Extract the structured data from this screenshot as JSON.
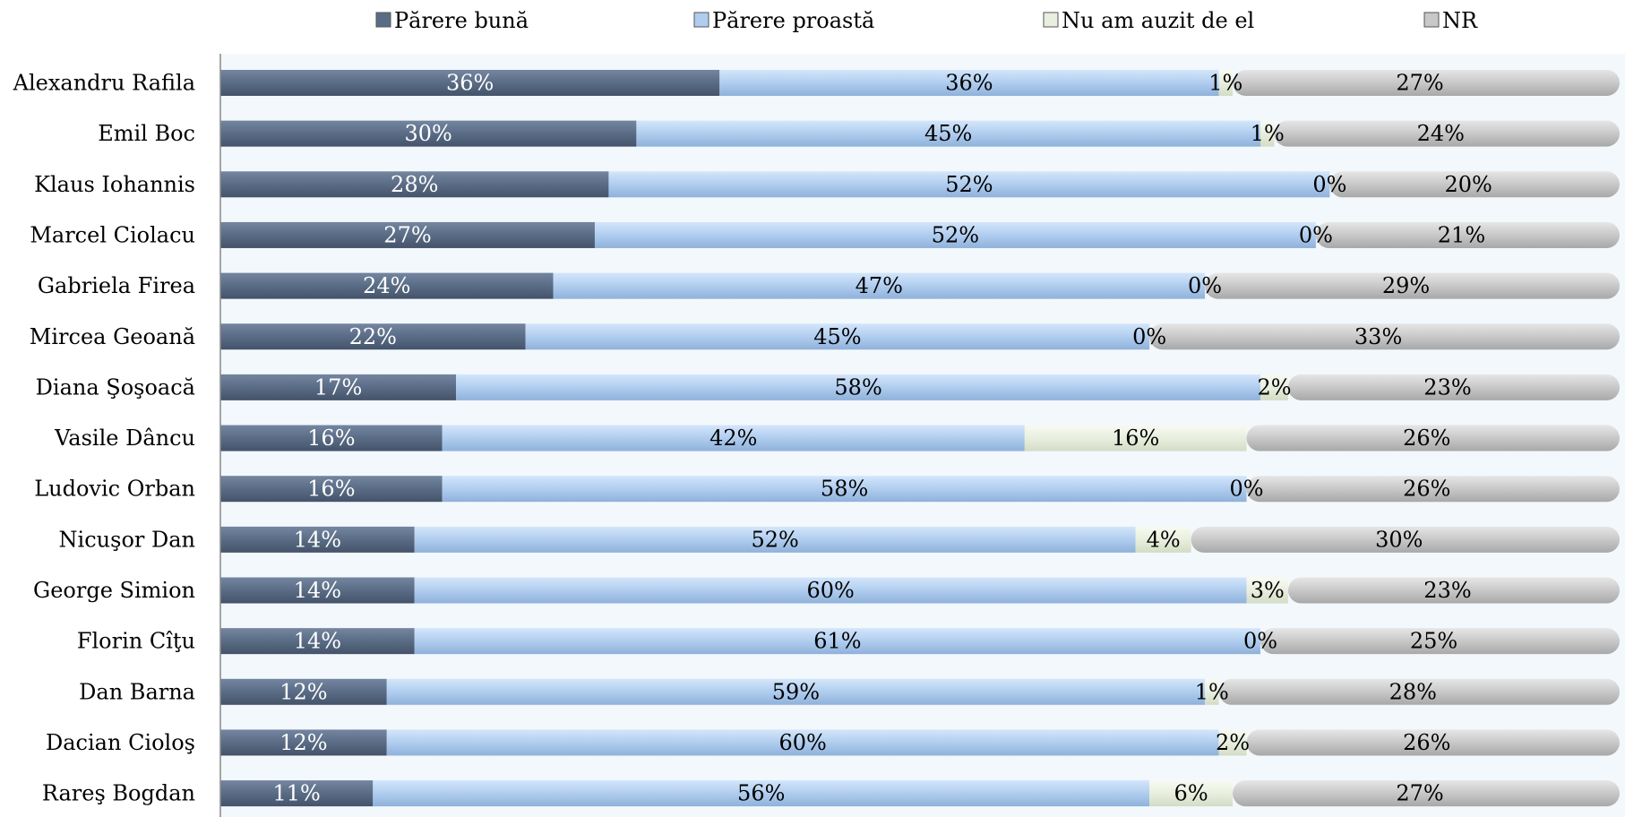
{
  "chart_data": {
    "type": "bar",
    "orientation": "horizontal",
    "stacked": true,
    "percent_scale": true,
    "legend_position": "top",
    "grid": false,
    "categories": [
      "Alexandru Rafila",
      "Emil Boc",
      "Klaus Iohannis",
      "Marcel Ciolacu",
      "Gabriela Firea",
      "Mircea Geoană",
      "Diana Şoşoacă",
      "Vasile Dâncu",
      "Ludovic Orban",
      "Nicuşor Dan",
      "George Simion",
      "Florin Cîţu",
      "Dan Barna",
      "Dacian Cioloş",
      "Rareş Bogdan"
    ],
    "series": [
      {
        "name": "Părere bună",
        "color": "#5a6c85",
        "values": [
          36,
          30,
          28,
          27,
          24,
          22,
          17,
          16,
          16,
          14,
          14,
          14,
          12,
          12,
          11
        ],
        "labels": [
          "36%",
          "30%",
          "28%",
          "27%",
          "24%",
          "22%",
          "17%",
          "16%",
          "16%",
          "14%",
          "14%",
          "14%",
          "12%",
          "12%",
          "11%"
        ]
      },
      {
        "name": "Părere proastă",
        "color": "#b0cdef",
        "values": [
          36,
          45,
          52,
          52,
          47,
          45,
          58,
          42,
          58,
          52,
          60,
          61,
          59,
          60,
          56
        ],
        "labels": [
          "36%",
          "45%",
          "52%",
          "52%",
          "47%",
          "45%",
          "58%",
          "42%",
          "58%",
          "52%",
          "60%",
          "61%",
          "59%",
          "60%",
          "56%"
        ]
      },
      {
        "name": "Nu am auzit de el",
        "color": "#e9efdf",
        "values": [
          1,
          1,
          0,
          0,
          0,
          0,
          2,
          16,
          0,
          4,
          3,
          0,
          1,
          2,
          6
        ],
        "labels": [
          "1%",
          "1%",
          "0%",
          "0%",
          "0%",
          "0%",
          "2%",
          "16%",
          "0%",
          "4%",
          "3%",
          "0%",
          "1%",
          "2%",
          "6%"
        ]
      },
      {
        "name": "NR",
        "color": "#c8c8c8",
        "values": [
          27,
          24,
          20,
          21,
          29,
          33,
          23,
          26,
          26,
          30,
          23,
          25,
          28,
          26,
          27
        ],
        "labels": [
          "27%",
          "24%",
          "20%",
          "21%",
          "29%",
          "33%",
          "23%",
          "26%",
          "26%",
          "30%",
          "23%",
          "25%",
          "28%",
          "26%",
          "27%"
        ]
      }
    ]
  }
}
